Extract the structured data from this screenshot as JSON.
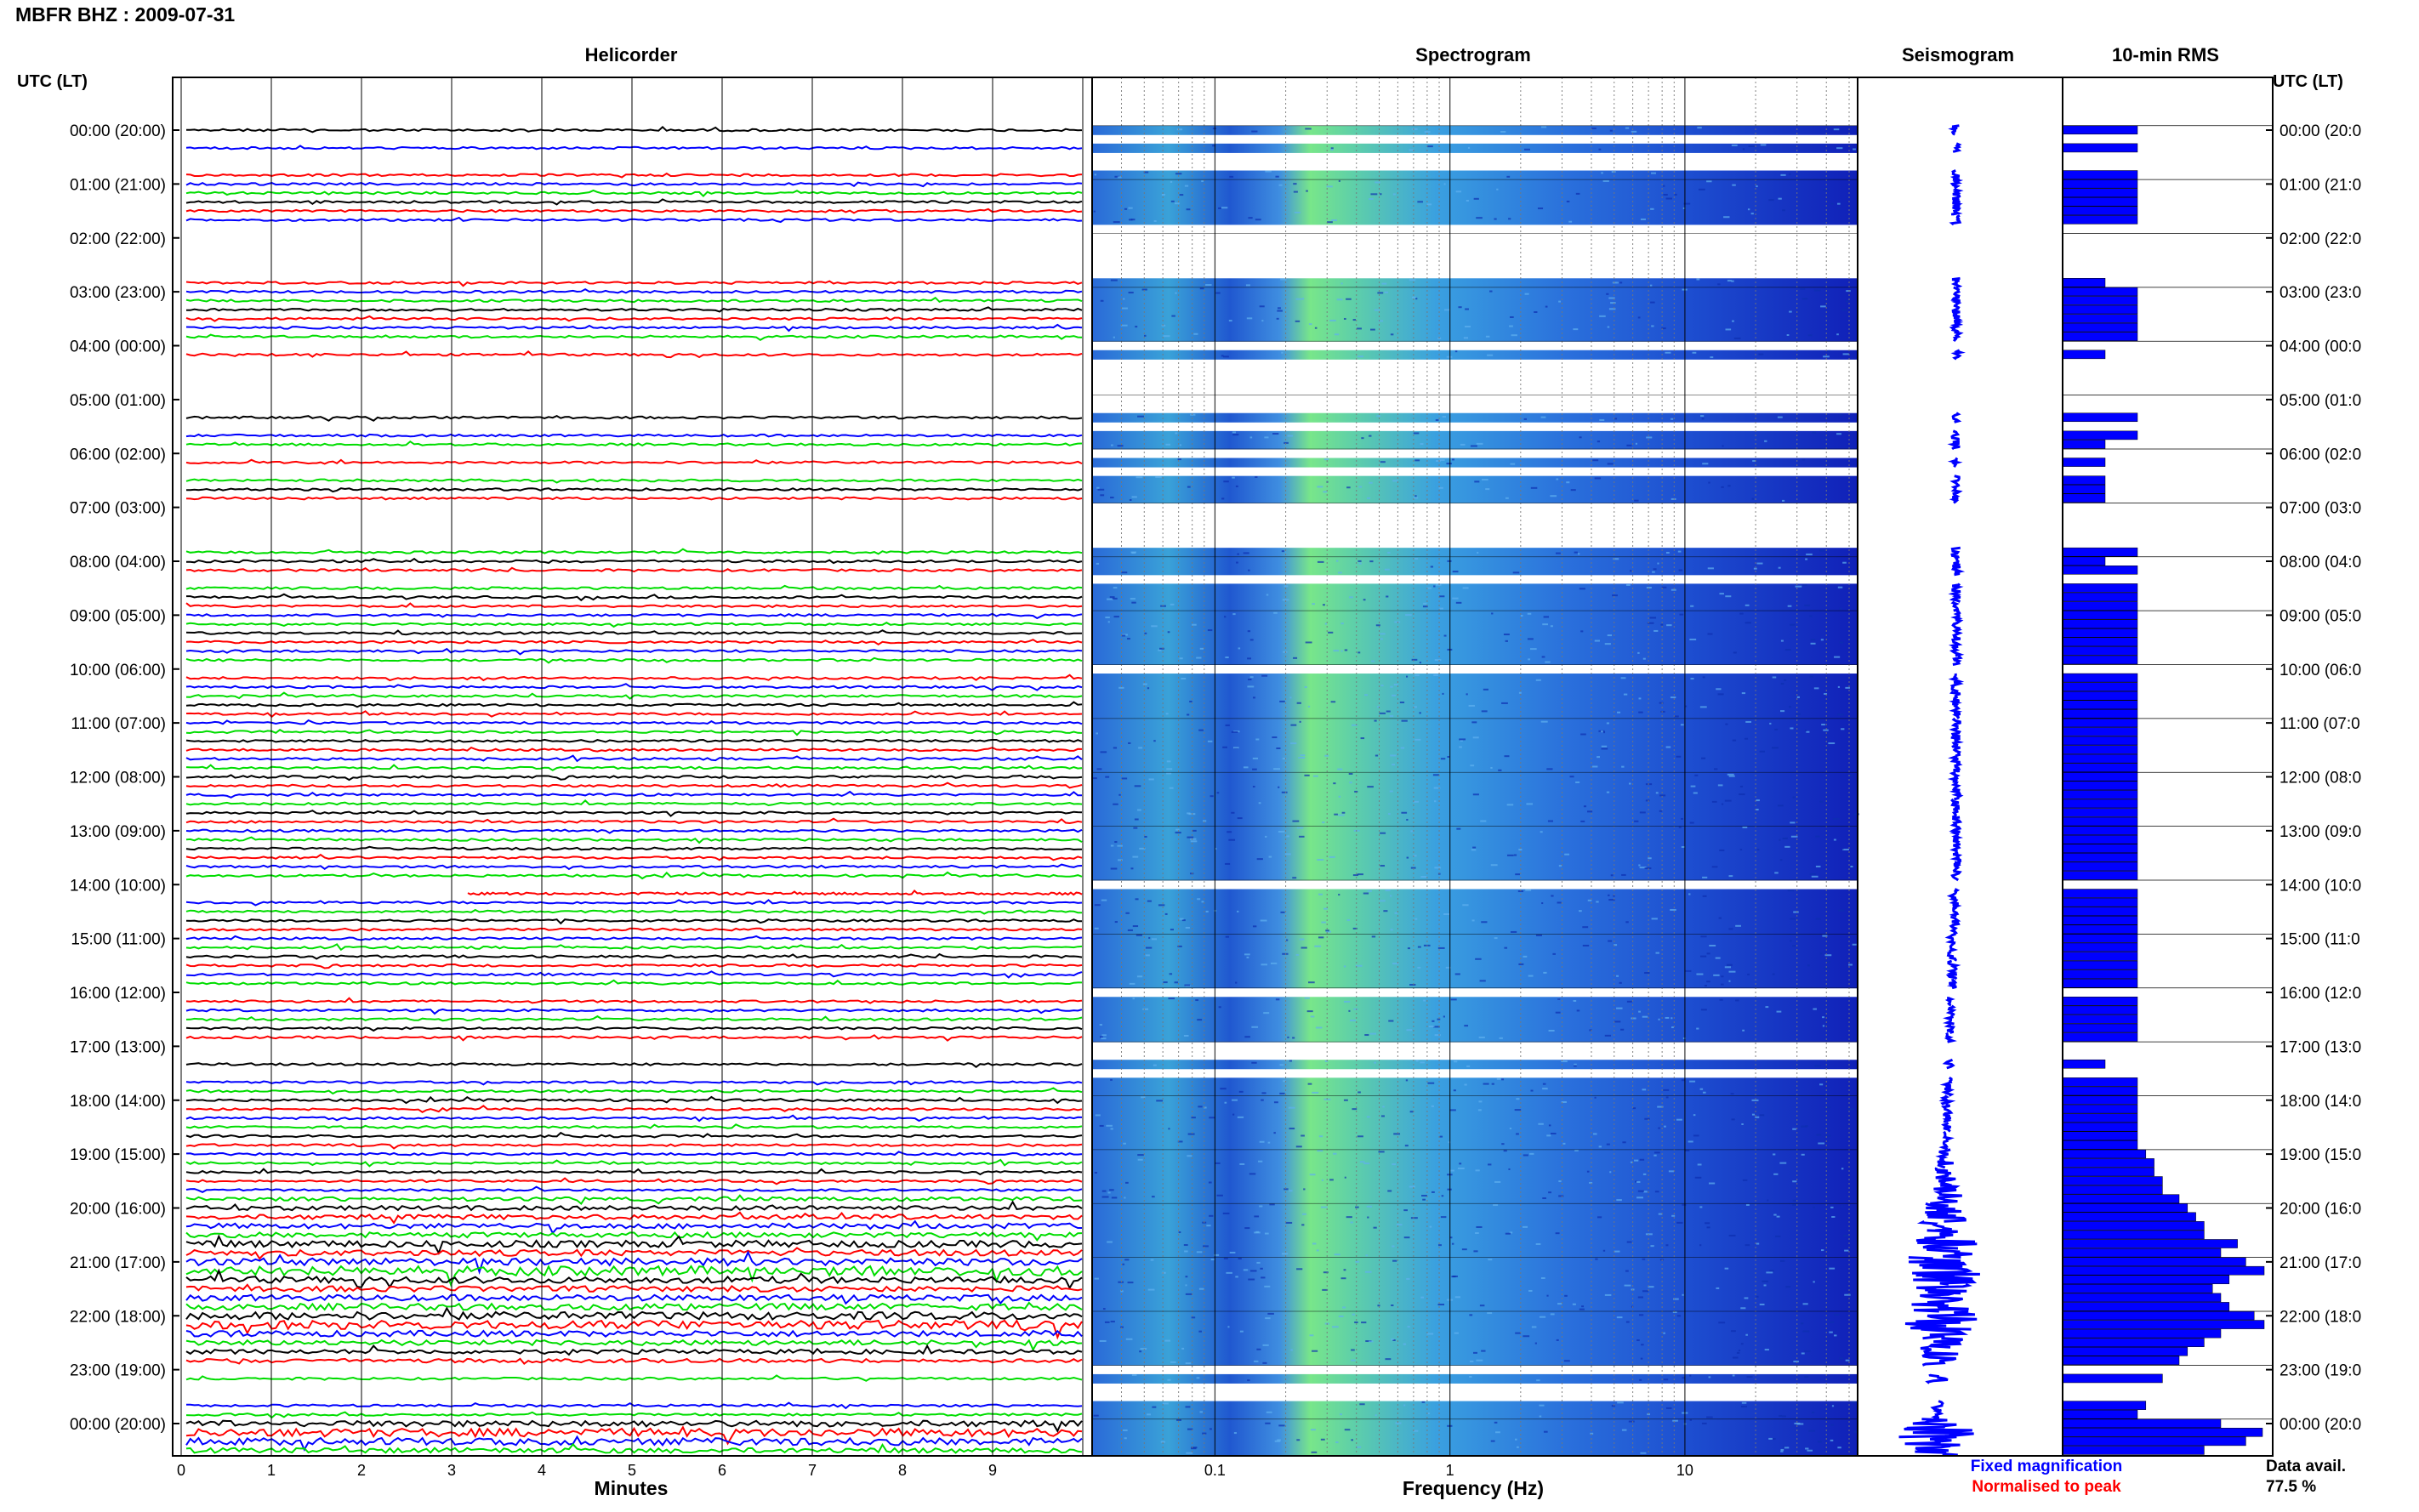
{
  "header": {
    "title": "MBFR BHZ : 2009-07-31"
  },
  "panels": {
    "helicorder": "Helicorder",
    "spectrogram": "Spectrogram",
    "seismogram": "Seismogram",
    "rms": "10-min RMS"
  },
  "axis": {
    "left_header": "UTC (LT)",
    "right_header": "UTC (LT)",
    "helicorder_xlabel": "Minutes",
    "spectrogram_xlabel": "Frequency (Hz)",
    "minute_ticks": [
      "0",
      "1",
      "2",
      "3",
      "4",
      "5",
      "6",
      "7",
      "8",
      "9"
    ],
    "freq_ticks": [
      "0.1",
      "1",
      "10"
    ],
    "hour_labels": [
      "00:00 (20:00)",
      "01:00 (21:00)",
      "02:00 (22:00)",
      "03:00 (23:00)",
      "04:00 (00:00)",
      "05:00 (01:00)",
      "06:00 (02:00)",
      "07:00 (03:00)",
      "08:00 (04:00)",
      "09:00 (05:00)",
      "10:00 (06:00)",
      "11:00 (07:00)",
      "12:00 (08:00)",
      "13:00 (09:00)",
      "14:00 (10:00)",
      "15:00 (11:00)",
      "16:00 (12:00)",
      "17:00 (13:00)",
      "18:00 (14:00)",
      "19:00 (15:00)",
      "20:00 (16:00)",
      "21:00 (17:00)",
      "22:00 (18:00)",
      "23:00 (19:00)",
      "00:00 (20:00)"
    ],
    "right_hour_labels": [
      "00:00 (20:0",
      "01:00 (21:0",
      "02:00 (22:0",
      "03:00 (23:0",
      "04:00 (00:0",
      "05:00 (01:0",
      "06:00 (02:0",
      "07:00 (03:0",
      "08:00 (04:0",
      "09:00 (05:0",
      "10:00 (06:0",
      "11:00 (07:0",
      "12:00 (08:0",
      "13:00 (09:0",
      "14:00 (10:0",
      "15:00 (11:0",
      "16:00 (12:0",
      "17:00 (13:0",
      "18:00 (14:0",
      "19:00 (15:0",
      "20:00 (16:0",
      "21:00 (17:0",
      "22:00 (18:0",
      "23:00 (19:0",
      "00:00 (20:0"
    ]
  },
  "footer": {
    "fixed_magnification": "Fixed magnification",
    "normalised_to_peak": "Normalised to peak",
    "data_avail_label": "Data avail.",
    "data_avail_value": "77.5 %"
  },
  "colors": {
    "trace_cycle": [
      "#000000",
      "#ff0000",
      "#0000ff",
      "#00dd00"
    ],
    "fixed_magnification": "#0000ff",
    "normalised_to_peak": "#ff0000",
    "rms_bar": "#0000ff",
    "spectrogram_low": "#1020c8",
    "spectrogram_high": "#7ff07f"
  },
  "chart_data": {
    "type": "heatmap",
    "date": "2009-07-31",
    "rows_per_hour": 6,
    "row_minutes": 10,
    "freq_range_hz": [
      0.03,
      50
    ],
    "minute_range": [
      0,
      10
    ],
    "data_gaps_10min": [
      [
        0,
        1
      ],
      [
        0,
        3
      ],
      [
        0,
        4
      ],
      [
        1,
        5
      ],
      [
        2,
        0
      ],
      [
        2,
        1
      ],
      [
        2,
        2
      ],
      [
        2,
        3
      ],
      [
        2,
        4
      ],
      [
        4,
        0
      ],
      [
        4,
        2
      ],
      [
        4,
        3
      ],
      [
        4,
        4
      ],
      [
        4,
        5
      ],
      [
        5,
        0
      ],
      [
        5,
        1
      ],
      [
        5,
        3
      ],
      [
        6,
        0
      ],
      [
        6,
        2
      ],
      [
        7,
        0
      ],
      [
        7,
        1
      ],
      [
        7,
        2
      ],
      [
        7,
        3
      ],
      [
        7,
        4
      ],
      [
        8,
        2
      ],
      [
        10,
        0
      ],
      [
        14,
        0
      ],
      [
        16,
        0
      ],
      [
        17,
        0
      ],
      [
        17,
        1
      ],
      [
        17,
        3
      ],
      [
        23,
        0
      ],
      [
        23,
        2
      ],
      [
        23,
        3
      ]
    ],
    "rms_by_10min": [
      [
        1,
        0,
        1,
        0,
        0,
        1
      ],
      [
        1,
        1,
        1,
        1,
        1,
        1
      ],
      [
        0,
        0,
        0,
        0,
        0,
        0
      ],
      [
        1,
        1,
        1,
        1,
        1,
        1
      ],
      [
        0,
        0,
        1,
        0,
        0,
        0
      ],
      [
        0,
        0,
        1,
        0,
        1,
        0
      ],
      [
        0,
        0,
        0,
        0,
        0,
        0
      ],
      [
        0,
        0,
        0,
        0,
        0,
        1
      ],
      [
        0,
        1,
        0,
        1,
        1,
        1
      ],
      [
        1,
        1,
        1,
        1,
        1,
        1
      ],
      [
        1,
        1,
        1,
        1,
        1,
        1
      ],
      [
        1,
        1,
        1,
        1,
        1,
        1
      ],
      [
        1,
        1,
        1,
        1,
        1,
        1
      ],
      [
        1,
        1,
        1,
        1,
        1,
        1
      ],
      [
        0,
        1,
        1,
        1,
        1,
        1
      ],
      [
        1,
        1,
        1,
        1,
        1,
        1
      ],
      [
        0,
        1,
        1,
        1,
        1,
        1
      ],
      [
        1,
        1,
        0,
        1,
        1,
        1
      ],
      [
        1,
        1,
        1,
        1,
        1,
        1
      ],
      [
        1.1,
        1.2,
        1.2,
        1.3,
        1.3,
        1.5
      ],
      [
        1.6,
        1.7,
        1.8,
        1.8,
        2.2,
        2.0
      ],
      [
        2.3,
        2.8,
        2.1,
        1.9,
        2.0,
        2.1
      ],
      [
        2.4,
        2.6,
        2.0,
        1.8,
        1.6,
        1.5
      ],
      [
        1.4,
        1.3,
        1.2,
        1.3,
        1.1,
        1.0
      ],
      [
        2.0,
        2.5,
        2.3,
        1.8,
        1.5,
        1.2
      ]
    ]
  }
}
